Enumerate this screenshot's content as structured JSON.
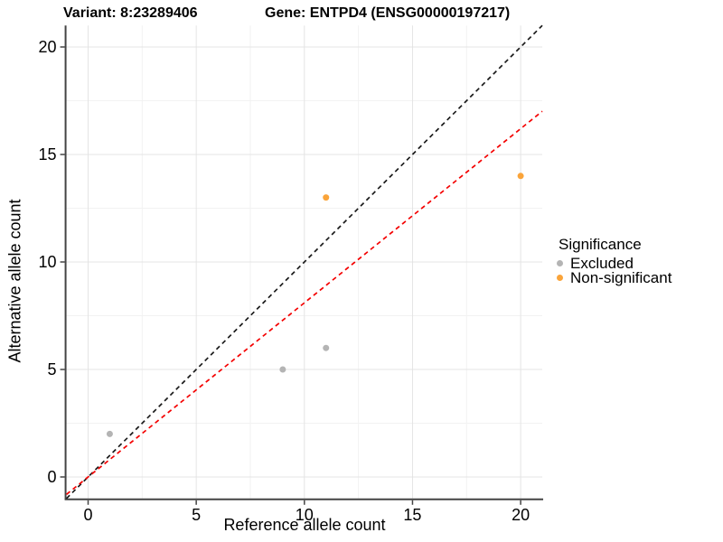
{
  "chart_data": {
    "type": "scatter",
    "title_left": "Variant: 8:23289406",
    "title_right": "Gene: ENTPD4 (ENSG00000197217)",
    "xlabel": "Reference allele count",
    "ylabel": "Alternative allele count",
    "xlim": [
      -1,
      21
    ],
    "ylim": [
      -1,
      21
    ],
    "xticks": [
      0,
      5,
      10,
      15,
      20
    ],
    "yticks": [
      0,
      5,
      10,
      15,
      20
    ],
    "xminor": [
      2.5,
      7.5,
      12.5,
      17.5
    ],
    "yminor": [
      2.5,
      7.5,
      12.5,
      17.5
    ],
    "grid": true,
    "legend": {
      "title": "Significance",
      "position": "right",
      "items": [
        {
          "label": "Excluded",
          "color": "#b4b4b4"
        },
        {
          "label": "Non-significant",
          "color": "#FAA43A"
        }
      ]
    },
    "series": [
      {
        "name": "Excluded",
        "color": "#b4b4b4",
        "points": [
          [
            1,
            2
          ],
          [
            9,
            5
          ],
          [
            11,
            6
          ]
        ]
      },
      {
        "name": "Non-significant",
        "color": "#FAA43A",
        "points": [
          [
            11,
            13
          ],
          [
            20,
            14
          ]
        ]
      }
    ],
    "lines": [
      {
        "name": "identity-line",
        "slope": 1,
        "intercept": 0,
        "color": "#1a1a1a",
        "dash": "dashed"
      },
      {
        "name": "fit-line",
        "slope": 0.81,
        "intercept": 0,
        "color": "#f40000",
        "dash": "dashed"
      }
    ],
    "colors": {
      "grid_major": "#e4e4e4",
      "grid_minor": "#f2f2f2",
      "axis_line": "#444444",
      "tick_mark": "#444444",
      "tick_label": "#000000"
    }
  }
}
